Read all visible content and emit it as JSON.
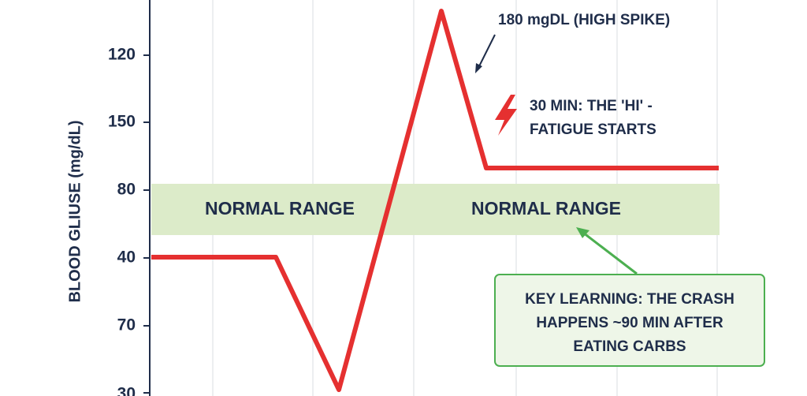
{
  "axis": {
    "title": "BLOOD GLIUSE (mg/dL)",
    "tick_labels": [
      "120",
      "150",
      "80",
      "40",
      "70",
      "30"
    ]
  },
  "bands": [
    "NORMAL RANGE",
    "NORMAL RANGE"
  ],
  "annotations": {
    "spike": "180 mgDL (HIGH SPIKE)",
    "fatigue": [
      "30 MIN: THE 'HI' -",
      "FATIGUE STARTS"
    ],
    "key_learning": [
      "KEY LEARNING: THE CRASH",
      "HAPPENS ~90 MIN AFTER",
      "EATING CARBS"
    ]
  }
}
